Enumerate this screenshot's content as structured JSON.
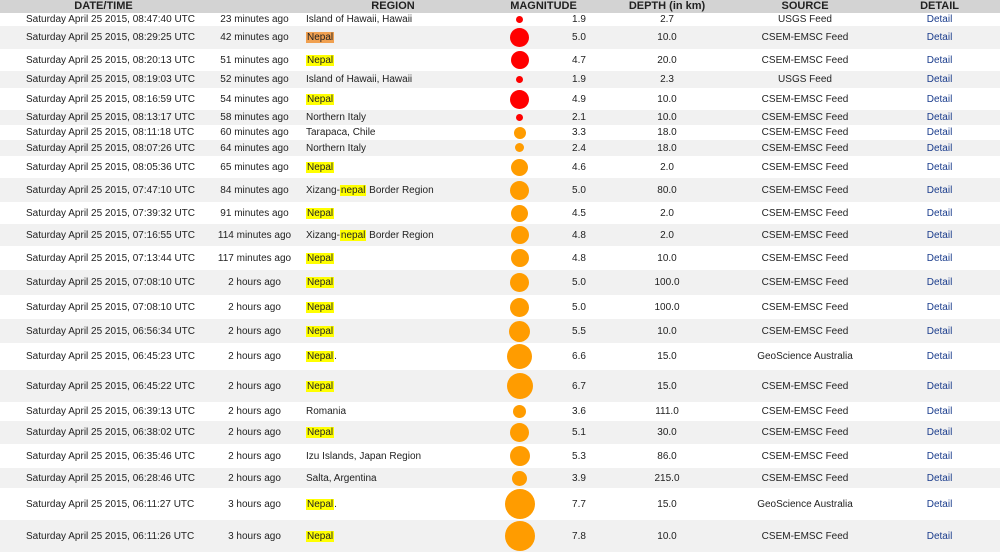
{
  "colors": {
    "hl_yellow": "#ffff00",
    "hl_orange": "#f0a050",
    "dot_red": "#ff0000",
    "dot_orange": "#ff9c00",
    "link": "#1a3c8c"
  },
  "headers": {
    "date": "DATE/TIME",
    "region": "REGION",
    "magnitude": "MAGNITUDE",
    "depth": "DEPTH (in km)",
    "source": "SOURCE",
    "detail": "DETAIL"
  },
  "rows": [
    {
      "date": "Saturday April 25 2015, 08:47:40 UTC",
      "ago": "23 minutes ago",
      "pre": "Island of Hawaii, Hawaii",
      "hl": "",
      "post": "",
      "hlColor": "",
      "mag": "1.9",
      "depth": "2.7",
      "source": "USGS Feed",
      "detail": "Detail",
      "dot": "red"
    },
    {
      "date": "Saturday April 25 2015, 08:29:25 UTC",
      "ago": "42 minutes ago",
      "pre": "",
      "hl": "Nepal",
      "post": "",
      "hlColor": "orange",
      "mag": "5.0",
      "depth": "10.0",
      "source": "CSEM-EMSC Feed",
      "detail": "Detail",
      "dot": "red"
    },
    {
      "date": "Saturday April 25 2015, 08:20:13 UTC",
      "ago": "51 minutes ago",
      "pre": "",
      "hl": "Nepal",
      "post": "",
      "hlColor": "yellow",
      "mag": "4.7",
      "depth": "20.0",
      "source": "CSEM-EMSC Feed",
      "detail": "Detail",
      "dot": "red"
    },
    {
      "date": "Saturday April 25 2015, 08:19:03 UTC",
      "ago": "52 minutes ago",
      "pre": "Island of Hawaii, Hawaii",
      "hl": "",
      "post": "",
      "hlColor": "",
      "mag": "1.9",
      "depth": "2.3",
      "source": "USGS Feed",
      "detail": "Detail",
      "dot": "red"
    },
    {
      "date": "Saturday April 25 2015, 08:16:59 UTC",
      "ago": "54 minutes ago",
      "pre": "",
      "hl": "Nepal",
      "post": "",
      "hlColor": "yellow",
      "mag": "4.9",
      "depth": "10.0",
      "source": "CSEM-EMSC Feed",
      "detail": "Detail",
      "dot": "red"
    },
    {
      "date": "Saturday April 25 2015, 08:13:17 UTC",
      "ago": "58 minutes ago",
      "pre": "Northern Italy",
      "hl": "",
      "post": "",
      "hlColor": "",
      "mag": "2.1",
      "depth": "10.0",
      "source": "CSEM-EMSC Feed",
      "detail": "Detail",
      "dot": "red"
    },
    {
      "date": "Saturday April 25 2015, 08:11:18 UTC",
      "ago": "60 minutes ago",
      "pre": "Tarapaca, Chile",
      "hl": "",
      "post": "",
      "hlColor": "",
      "mag": "3.3",
      "depth": "18.0",
      "source": "CSEM-EMSC Feed",
      "detail": "Detail",
      "dot": "orange"
    },
    {
      "date": "Saturday April 25 2015, 08:07:26 UTC",
      "ago": "64 minutes ago",
      "pre": "Northern Italy",
      "hl": "",
      "post": "",
      "hlColor": "",
      "mag": "2.4",
      "depth": "18.0",
      "source": "CSEM-EMSC Feed",
      "detail": "Detail",
      "dot": "orange"
    },
    {
      "date": "Saturday April 25 2015, 08:05:36 UTC",
      "ago": "65 minutes ago",
      "pre": "",
      "hl": "Nepal",
      "post": "",
      "hlColor": "yellow",
      "mag": "4.6",
      "depth": "2.0",
      "source": "CSEM-EMSC Feed",
      "detail": "Detail",
      "dot": "orange"
    },
    {
      "date": "Saturday April 25 2015, 07:47:10 UTC",
      "ago": "84 minutes ago",
      "pre": "Xizang-",
      "hl": "nepal",
      "post": " Border Region",
      "hlColor": "yellow",
      "mag": "5.0",
      "depth": "80.0",
      "source": "CSEM-EMSC Feed",
      "detail": "Detail",
      "dot": "orange"
    },
    {
      "date": "Saturday April 25 2015, 07:39:32 UTC",
      "ago": "91 minutes ago",
      "pre": "",
      "hl": "Nepal",
      "post": "",
      "hlColor": "yellow",
      "mag": "4.5",
      "depth": "2.0",
      "source": "CSEM-EMSC Feed",
      "detail": "Detail",
      "dot": "orange"
    },
    {
      "date": "Saturday April 25 2015, 07:16:55 UTC",
      "ago": "114 minutes ago",
      "pre": "Xizang-",
      "hl": "nepal",
      "post": " Border Region",
      "hlColor": "yellow",
      "mag": "4.8",
      "depth": "2.0",
      "source": "CSEM-EMSC Feed",
      "detail": "Detail",
      "dot": "orange"
    },
    {
      "date": "Saturday April 25 2015, 07:13:44 UTC",
      "ago": "117 minutes ago",
      "pre": "",
      "hl": "Nepal",
      "post": "",
      "hlColor": "yellow",
      "mag": "4.8",
      "depth": "10.0",
      "source": "CSEM-EMSC Feed",
      "detail": "Detail",
      "dot": "orange"
    },
    {
      "date": "Saturday April 25 2015, 07:08:10 UTC",
      "ago": "2 hours ago",
      "pre": "",
      "hl": "Nepal",
      "post": "",
      "hlColor": "yellow",
      "mag": "5.0",
      "depth": "100.0",
      "source": "CSEM-EMSC Feed",
      "detail": "Detail",
      "dot": "orange"
    },
    {
      "date": "Saturday April 25 2015, 07:08:10 UTC",
      "ago": "2 hours ago",
      "pre": "",
      "hl": "Nepal",
      "post": "",
      "hlColor": "yellow",
      "mag": "5.0",
      "depth": "100.0",
      "source": "CSEM-EMSC Feed",
      "detail": "Detail",
      "dot": "orange"
    },
    {
      "date": "Saturday April 25 2015, 06:56:34 UTC",
      "ago": "2 hours ago",
      "pre": "",
      "hl": "Nepal",
      "post": "",
      "hlColor": "yellow",
      "mag": "5.5",
      "depth": "10.0",
      "source": "CSEM-EMSC Feed",
      "detail": "Detail",
      "dot": "orange"
    },
    {
      "date": "Saturday April 25 2015, 06:45:23 UTC",
      "ago": "2 hours ago",
      "pre": "",
      "hl": "Nepal",
      "post": ".",
      "hlColor": "yellow",
      "mag": "6.6",
      "depth": "15.0",
      "source": "GeoScience Australia",
      "detail": "Detail",
      "dot": "orange"
    },
    {
      "date": "Saturday April 25 2015, 06:45:22 UTC",
      "ago": "2 hours ago",
      "pre": "",
      "hl": "Nepal",
      "post": "",
      "hlColor": "yellow",
      "mag": "6.7",
      "depth": "15.0",
      "source": "CSEM-EMSC Feed",
      "detail": "Detail",
      "dot": "orange"
    },
    {
      "date": "Saturday April 25 2015, 06:39:13 UTC",
      "ago": "2 hours ago",
      "pre": "Romania",
      "hl": "",
      "post": "",
      "hlColor": "",
      "mag": "3.6",
      "depth": "111.0",
      "source": "CSEM-EMSC Feed",
      "detail": "Detail",
      "dot": "orange"
    },
    {
      "date": "Saturday April 25 2015, 06:38:02 UTC",
      "ago": "2 hours ago",
      "pre": "",
      "hl": "Nepal",
      "post": "",
      "hlColor": "yellow",
      "mag": "5.1",
      "depth": "30.0",
      "source": "CSEM-EMSC Feed",
      "detail": "Detail",
      "dot": "orange"
    },
    {
      "date": "Saturday April 25 2015, 06:35:46 UTC",
      "ago": "2 hours ago",
      "pre": "Izu Islands, Japan Region",
      "hl": "",
      "post": "",
      "hlColor": "",
      "mag": "5.3",
      "depth": "86.0",
      "source": "CSEM-EMSC Feed",
      "detail": "Detail",
      "dot": "orange"
    },
    {
      "date": "Saturday April 25 2015, 06:28:46 UTC",
      "ago": "2 hours ago",
      "pre": "Salta, Argentina",
      "hl": "",
      "post": "",
      "hlColor": "",
      "mag": "3.9",
      "depth": "215.0",
      "source": "CSEM-EMSC Feed",
      "detail": "Detail",
      "dot": "orange"
    },
    {
      "date": "Saturday April 25 2015, 06:11:27 UTC",
      "ago": "3 hours ago",
      "pre": "",
      "hl": "Nepal",
      "post": ".",
      "hlColor": "yellow",
      "mag": "7.7",
      "depth": "15.0",
      "source": "GeoScience Australia",
      "detail": "Detail",
      "dot": "orange"
    },
    {
      "date": "Saturday April 25 2015, 06:11:26 UTC",
      "ago": "3 hours ago",
      "pre": "",
      "hl": "Nepal",
      "post": "",
      "hlColor": "yellow",
      "mag": "7.8",
      "depth": "10.0",
      "source": "CSEM-EMSC Feed",
      "detail": "Detail",
      "dot": "orange"
    }
  ]
}
